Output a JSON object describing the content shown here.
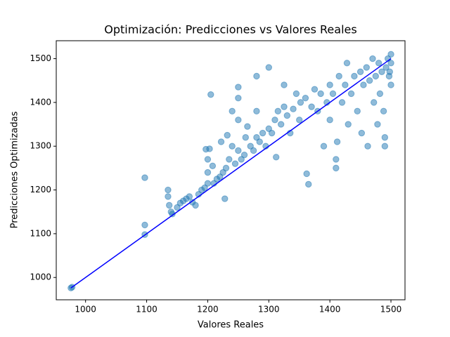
{
  "chart_data": {
    "type": "scatter",
    "title": "Optimización: Predicciones vs Valores Reales",
    "xlabel": "Valores Reales",
    "ylabel": "Predicciones Optimizadas",
    "xlim": [
      952,
      1523
    ],
    "ylim": [
      949,
      1541
    ],
    "xticks": [
      1000,
      1100,
      1200,
      1300,
      1400,
      1500
    ],
    "yticks": [
      1000,
      1100,
      1200,
      1300,
      1400,
      1500
    ],
    "color": "#1f77b4",
    "x": [
      976,
      978,
      1097,
      1097,
      1097,
      1135,
      1135,
      1137,
      1140,
      1142,
      1150,
      1155,
      1160,
      1165,
      1170,
      1175,
      1180,
      1185,
      1190,
      1195,
      1197,
      1200,
      1200,
      1200,
      1203,
      1205,
      1208,
      1210,
      1215,
      1220,
      1222,
      1225,
      1228,
      1230,
      1232,
      1235,
      1240,
      1240,
      1245,
      1250,
      1250,
      1250,
      1250,
      1255,
      1260,
      1262,
      1265,
      1270,
      1275,
      1280,
      1280,
      1280,
      1285,
      1290,
      1295,
      1300,
      1300,
      1305,
      1310,
      1312,
      1315,
      1320,
      1325,
      1325,
      1330,
      1335,
      1340,
      1345,
      1350,
      1352,
      1360,
      1362,
      1365,
      1370,
      1375,
      1380,
      1385,
      1390,
      1395,
      1400,
      1400,
      1405,
      1410,
      1410,
      1412,
      1415,
      1420,
      1425,
      1428,
      1430,
      1435,
      1440,
      1445,
      1450,
      1452,
      1455,
      1460,
      1462,
      1465,
      1470,
      1472,
      1475,
      1478,
      1480,
      1482,
      1485,
      1488,
      1490,
      1490,
      1492,
      1495,
      1497,
      1500,
      1500,
      1500,
      1498
    ],
    "y": [
      976,
      978,
      1228,
      1120,
      1098,
      1200,
      1185,
      1165,
      1150,
      1145,
      1160,
      1170,
      1175,
      1180,
      1185,
      1172,
      1165,
      1190,
      1200,
      1205,
      1293,
      1270,
      1240,
      1215,
      1294,
      1418,
      1255,
      1215,
      1225,
      1230,
      1310,
      1240,
      1180,
      1250,
      1325,
      1270,
      1380,
      1300,
      1260,
      1435,
      1410,
      1360,
      1290,
      1270,
      1280,
      1320,
      1345,
      1300,
      1290,
      1460,
      1380,
      1320,
      1310,
      1330,
      1300,
      1480,
      1340,
      1330,
      1360,
      1275,
      1380,
      1350,
      1440,
      1390,
      1370,
      1330,
      1385,
      1420,
      1360,
      1400,
      1410,
      1237,
      1213,
      1390,
      1430,
      1380,
      1420,
      1300,
      1400,
      1440,
      1360,
      1420,
      1250,
      1270,
      1310,
      1460,
      1400,
      1440,
      1490,
      1350,
      1420,
      1460,
      1380,
      1470,
      1330,
      1440,
      1480,
      1300,
      1450,
      1500,
      1400,
      1460,
      1350,
      1490,
      1420,
      1470,
      1380,
      1320,
      1300,
      1480,
      1500,
      1460,
      1510,
      1490,
      1440,
      1470
    ],
    "line": {
      "x": [
        976,
        1500
      ],
      "y": [
        976,
        1500
      ],
      "color": "#0000ff"
    }
  }
}
